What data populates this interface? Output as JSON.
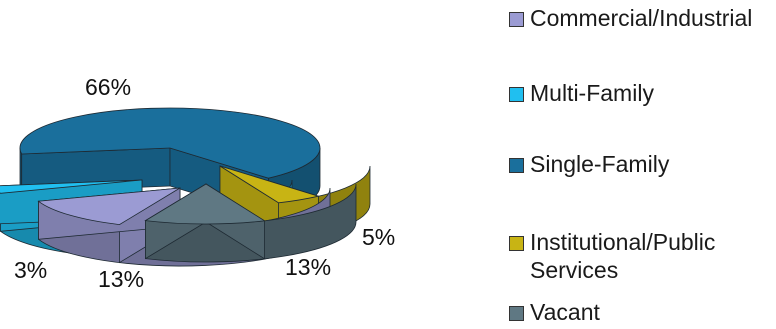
{
  "chart_data": {
    "type": "pie",
    "style": "3d-exploded",
    "categories": [
      "Commercial/Industrial",
      "Multi-Family",
      "Single-Family",
      "Institutional/Public Services",
      "Vacant"
    ],
    "values": [
      13,
      3,
      66,
      5,
      13
    ],
    "data_labels": [
      "13%",
      "3%",
      "66%",
      "5%",
      "13%"
    ],
    "colors": [
      "#9b9bd3",
      "#20bff0",
      "#1a6f9c",
      "#c8b414",
      "#5f7883"
    ],
    "legend_position": "right"
  },
  "legend": {
    "items": [
      {
        "lines": [
          "Commercial/Industrial"
        ],
        "color": "#9b9bd3"
      },
      {
        "lines": [
          "Multi-Family"
        ],
        "color": "#20bff0"
      },
      {
        "lines": [
          "Single-Family"
        ],
        "color": "#1a6f9c"
      },
      {
        "lines": [
          "Institutional/Public",
          "Services"
        ],
        "color": "#c8b414"
      },
      {
        "lines": [
          "Vacant"
        ],
        "color": "#5f7883"
      }
    ]
  }
}
